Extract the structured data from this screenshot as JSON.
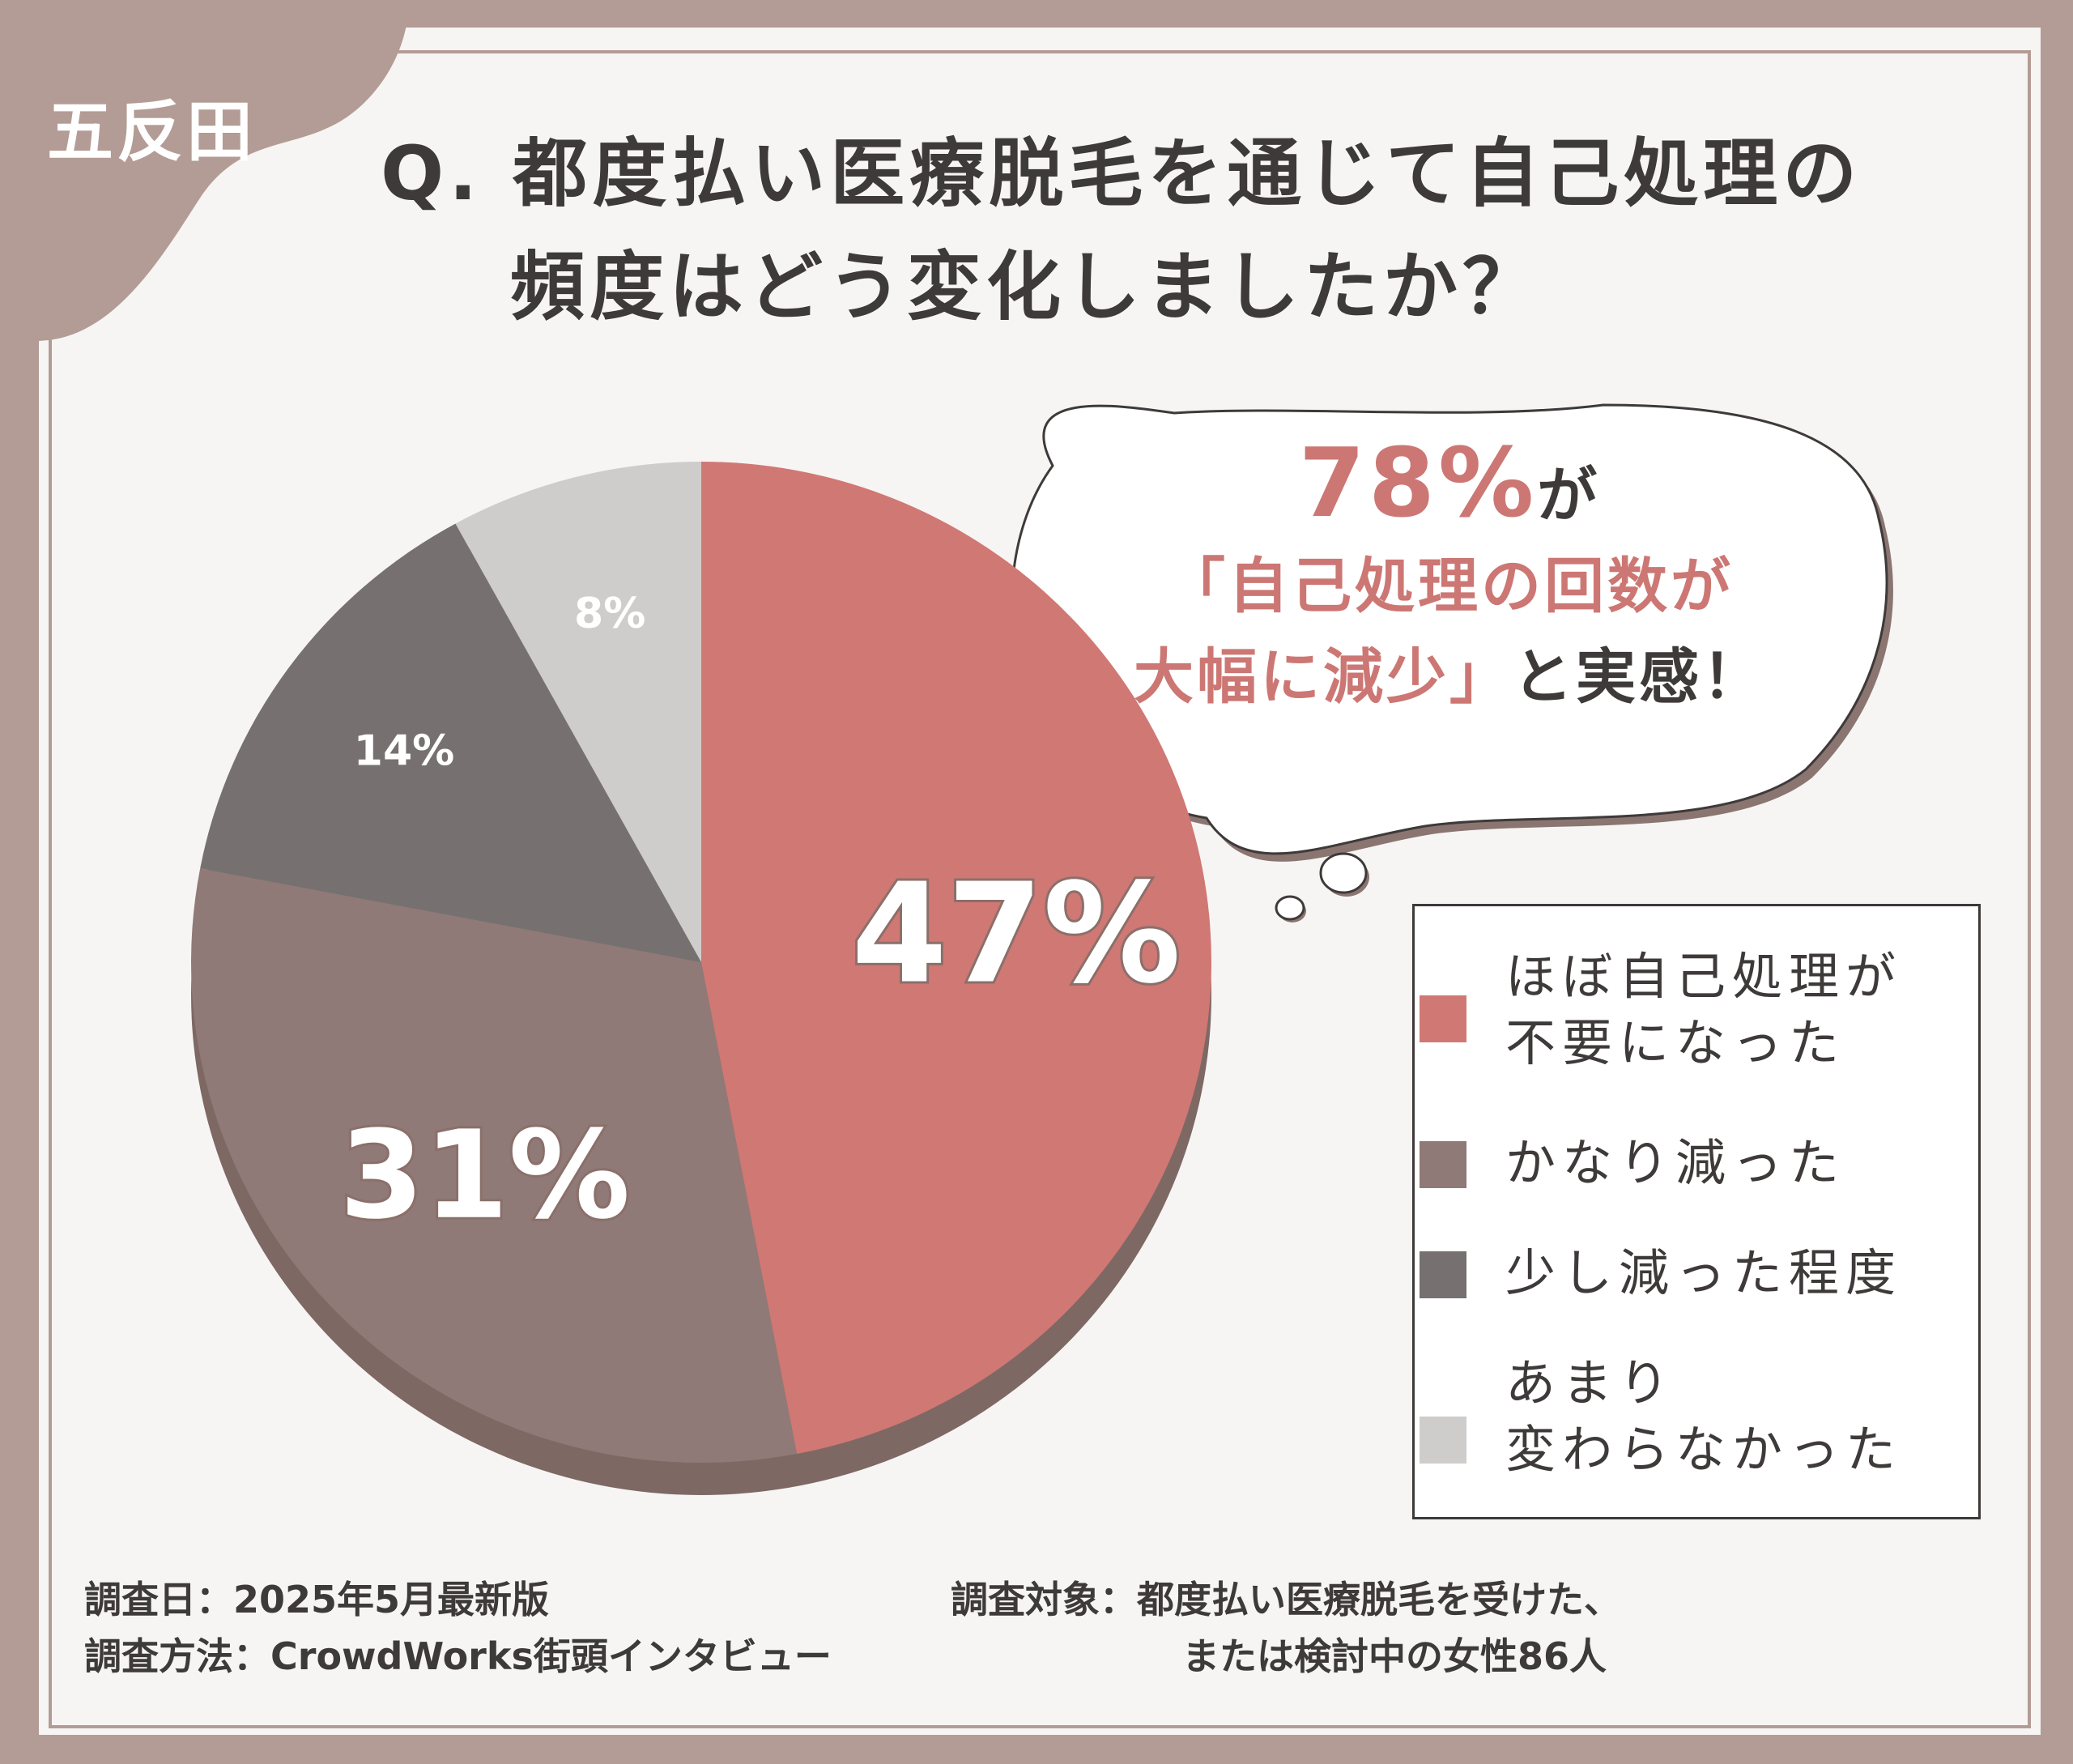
{
  "badge": "五反田",
  "title": {
    "line1": "Q. 都度払い医療脱毛を通じて自己処理の",
    "line2": "頻度はどう変化しましたか？"
  },
  "callout": {
    "percent": "78%",
    "ga": "が",
    "line2": "「自己処理の回数が",
    "line3_accent": "大幅に減少」",
    "line3_dark": "と実感！"
  },
  "legend": [
    {
      "line1": "ほぼ自己処理が",
      "line2": "不要になった",
      "color": "#d07874"
    },
    {
      "line1": "かなり減った",
      "line2": "",
      "color": "#8f7a77"
    },
    {
      "line1": "少し減った程度",
      "line2": "",
      "color": "#767170"
    },
    {
      "line1": "あまり",
      "line2": "変わらなかった",
      "color": "#cfcdcc"
    }
  ],
  "footer": {
    "date": "調査日：2025年5月最新版",
    "method": "調査方法：CrowdWorks街頭インタビュー",
    "target_line1": "調査対象：都度払い医療脱毛を受けた、",
    "target_line2": "または検討中の女性86人"
  },
  "chart_data": {
    "type": "pie",
    "categories": [
      "ほぼ自己処理が不要になった",
      "かなり減った",
      "少し減った程度",
      "あまり変わらなかった"
    ],
    "values": [
      47,
      31,
      14,
      8
    ],
    "labels": [
      "47%",
      "31%",
      "14%",
      "8%"
    ],
    "colors": [
      "#d07874",
      "#8f7a77",
      "#767170",
      "#cfcdcc"
    ],
    "side_color": "#7d6864"
  }
}
